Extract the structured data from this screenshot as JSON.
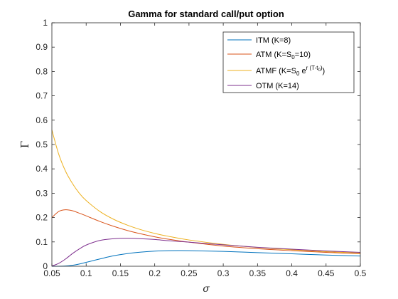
{
  "chart_data": {
    "type": "line",
    "title": "Gamma for standard call/put option",
    "xlabel": "σ",
    "ylabel": "Γ",
    "xlim": [
      0.05,
      0.5
    ],
    "ylim": [
      0,
      1
    ],
    "xticks": [
      "0.05",
      "0.1",
      "0.15",
      "0.2",
      "0.25",
      "0.3",
      "0.35",
      "0.4",
      "0.45",
      "0.5"
    ],
    "yticks": [
      "0",
      "0.1",
      "0.2",
      "0.3",
      "0.4",
      "0.5",
      "0.6",
      "0.7",
      "0.8",
      "0.9",
      "1"
    ],
    "grid": false,
    "legend_position": "top-right",
    "legend": {
      "itm": "ITM (K=8)",
      "atm_main": "ATM (K=S",
      "atm_sub": "0",
      "atm_end": "=10)",
      "atmf_main": "ATMF (K=S",
      "atmf_sub": "0",
      "atmf_mid": " e",
      "atmf_sup": "r (T-t",
      "atmf_supsub": "0",
      "atmf_supend": ")",
      "atmf_end": ")",
      "otm": "OTM (K=14)"
    },
    "x": [
      0.05,
      0.06,
      0.07,
      0.08,
      0.09,
      0.1,
      0.12,
      0.14,
      0.16,
      0.18,
      0.2,
      0.22,
      0.25,
      0.3,
      0.35,
      0.4,
      0.45,
      0.5
    ],
    "series": [
      {
        "name": "ITM (K=8)",
        "color": "#0072BD",
        "values": [
          0.0,
          0.0,
          0.001,
          0.004,
          0.009,
          0.016,
          0.03,
          0.043,
          0.052,
          0.058,
          0.062,
          0.064,
          0.064,
          0.061,
          0.056,
          0.051,
          0.046,
          0.042
        ]
      },
      {
        "name": "ATM (K=S0=10)",
        "color": "#D95319",
        "values": [
          0.2,
          0.225,
          0.232,
          0.228,
          0.218,
          0.207,
          0.184,
          0.164,
          0.147,
          0.133,
          0.121,
          0.111,
          0.099,
          0.083,
          0.072,
          0.064,
          0.057,
          0.052
        ]
      },
      {
        "name": "ATMF (K=S0 e^{r(T-t0)})",
        "color": "#EDB120",
        "values": [
          0.56,
          0.46,
          0.39,
          0.34,
          0.3,
          0.27,
          0.225,
          0.193,
          0.169,
          0.15,
          0.135,
          0.123,
          0.108,
          0.09,
          0.077,
          0.068,
          0.06,
          0.054
        ]
      },
      {
        "name": "OTM (K=14)",
        "color": "#7E2F8E",
        "values": [
          0.001,
          0.012,
          0.03,
          0.052,
          0.071,
          0.087,
          0.106,
          0.113,
          0.115,
          0.113,
          0.11,
          0.105,
          0.099,
          0.088,
          0.078,
          0.07,
          0.063,
          0.057
        ]
      }
    ]
  }
}
